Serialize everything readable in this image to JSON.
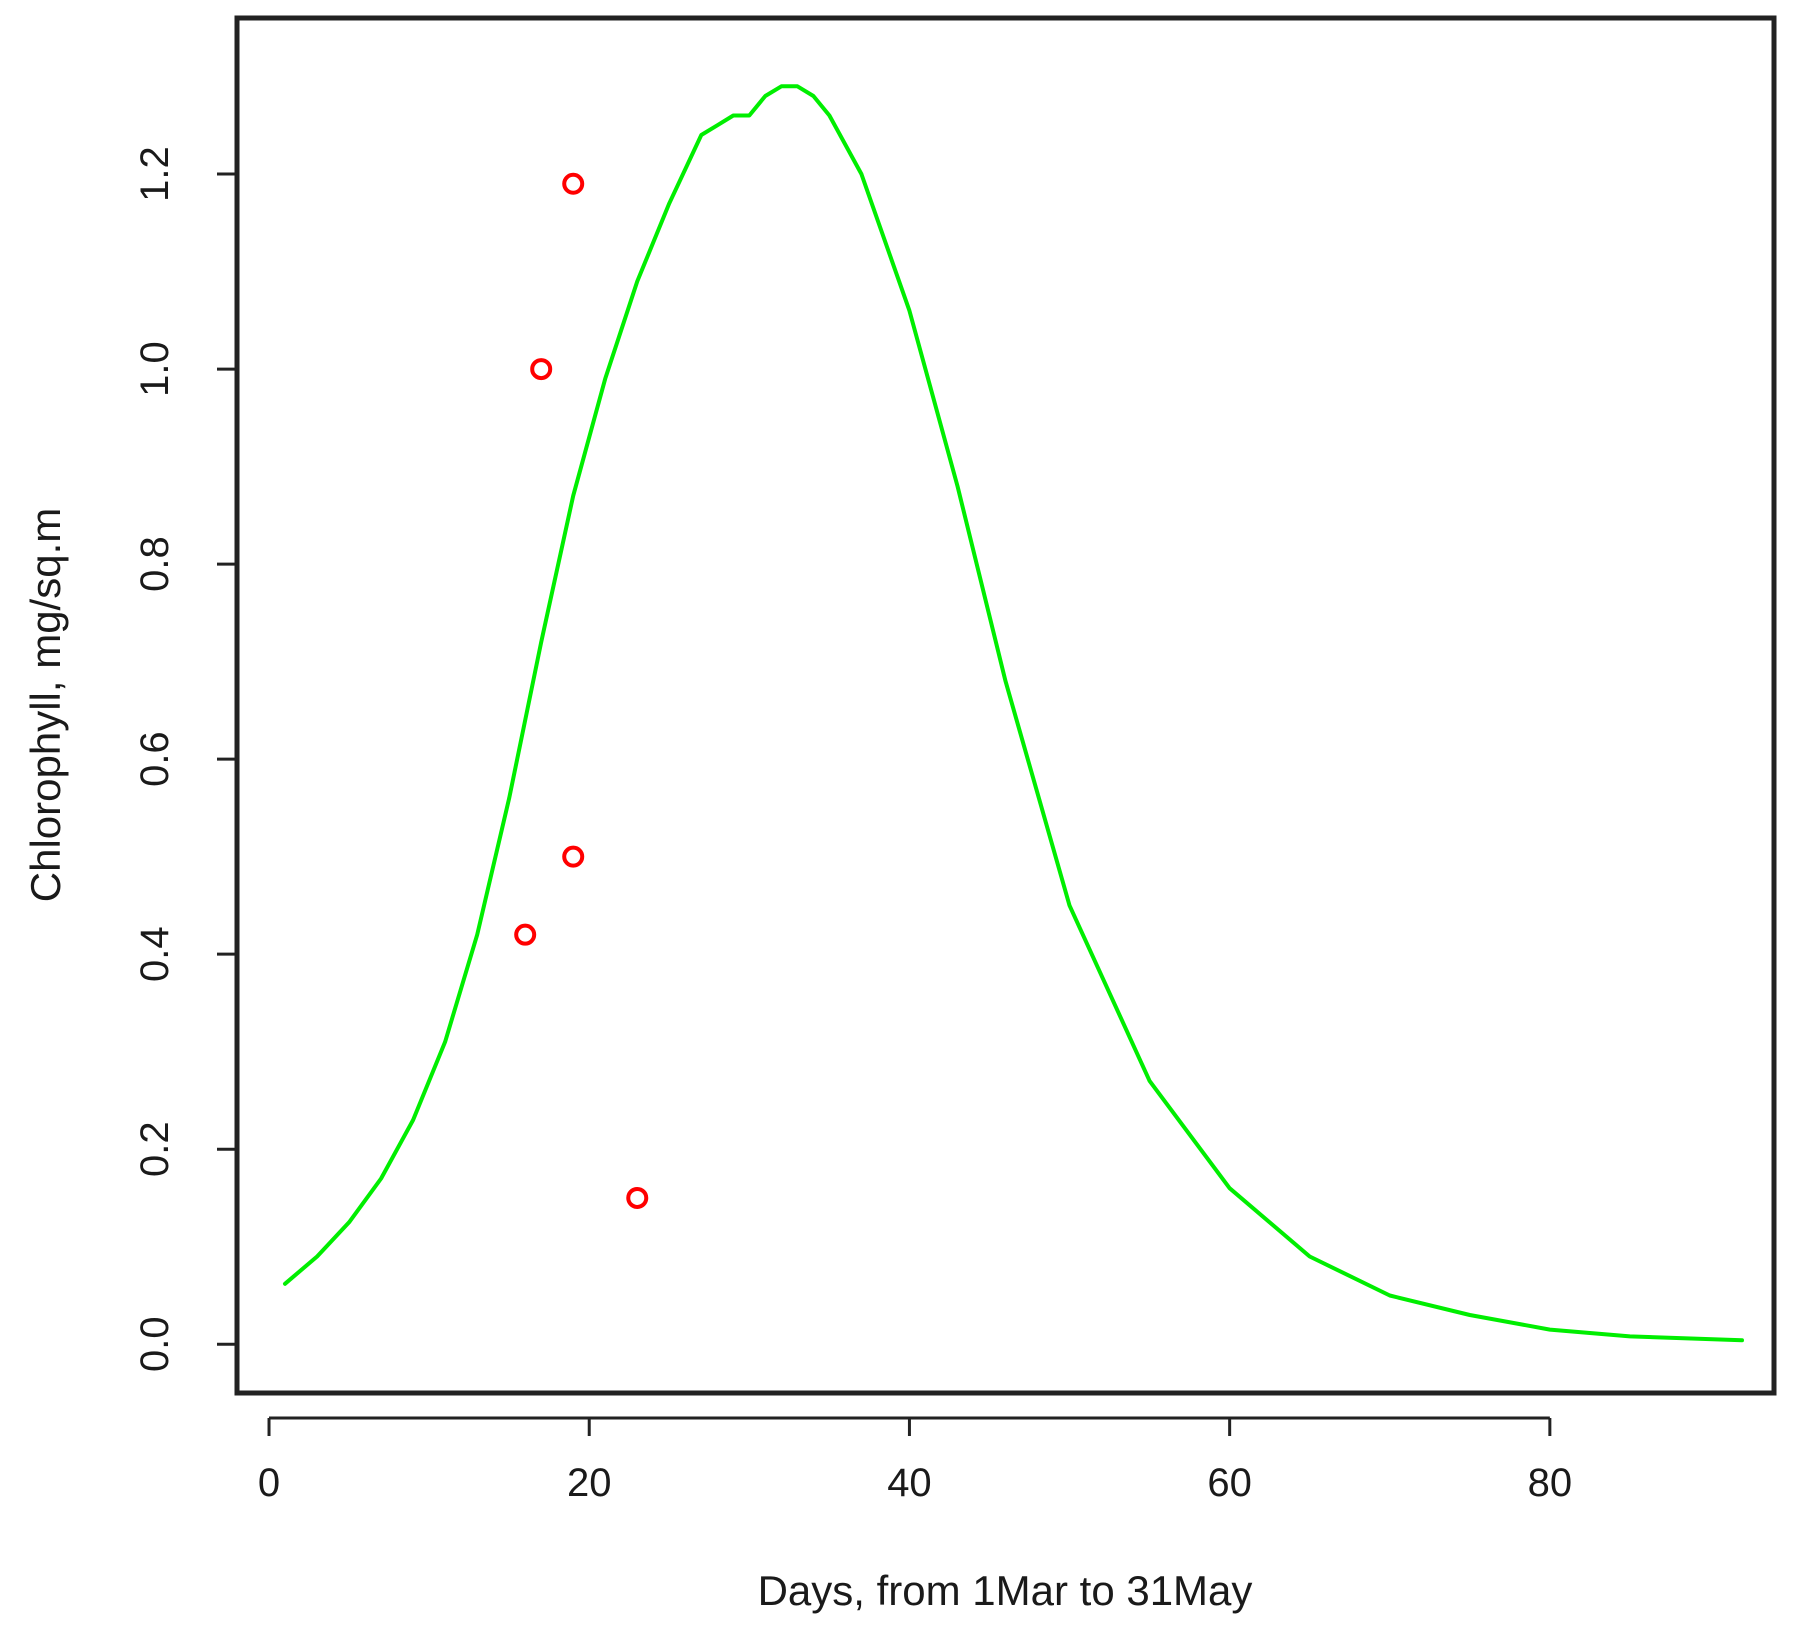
{
  "chart_data": {
    "type": "line",
    "title": "",
    "xlabel": "Days, from 1Mar to 31May",
    "ylabel": "Chlorophyll, mg/sq.m",
    "xlim": [
      -2,
      94
    ],
    "ylim": [
      -0.05,
      1.36
    ],
    "xticks": [
      0,
      20,
      40,
      60,
      80
    ],
    "xtick_labels": [
      "0",
      "20",
      "40",
      "60",
      "80"
    ],
    "yticks": [
      0.0,
      0.2,
      0.4,
      0.6,
      0.8,
      1.0,
      1.2
    ],
    "ytick_labels": [
      "0.0",
      "0.2",
      "0.4",
      "0.6",
      "0.8",
      "1.0",
      "1.2"
    ],
    "grid": false,
    "colors": {
      "model_line": "#00ee00",
      "observations": "#ff0000",
      "frame": "#222222",
      "text": "#1a1a1a"
    },
    "series": [
      {
        "kind": "line",
        "x": [
          1,
          3,
          5,
          7,
          9,
          11,
          13,
          15,
          17,
          19,
          21,
          23,
          25,
          27,
          28,
          29,
          30,
          31,
          32,
          33,
          34,
          35,
          37,
          40,
          43,
          46,
          50,
          55,
          60,
          65,
          70,
          75,
          80,
          85,
          92
        ],
        "y": [
          0.062,
          0.09,
          0.125,
          0.17,
          0.23,
          0.31,
          0.42,
          0.56,
          0.72,
          0.87,
          0.99,
          1.09,
          1.17,
          1.24,
          1.25,
          1.26,
          1.26,
          1.28,
          1.29,
          1.29,
          1.28,
          1.26,
          1.2,
          1.06,
          0.88,
          0.68,
          0.45,
          0.27,
          0.16,
          0.09,
          0.05,
          0.03,
          0.015,
          0.008,
          0.004
        ]
      },
      {
        "kind": "scatter",
        "x": [
          16,
          17,
          19,
          19,
          23
        ],
        "y": [
          0.42,
          1.0,
          1.19,
          0.5,
          0.15
        ]
      }
    ]
  }
}
